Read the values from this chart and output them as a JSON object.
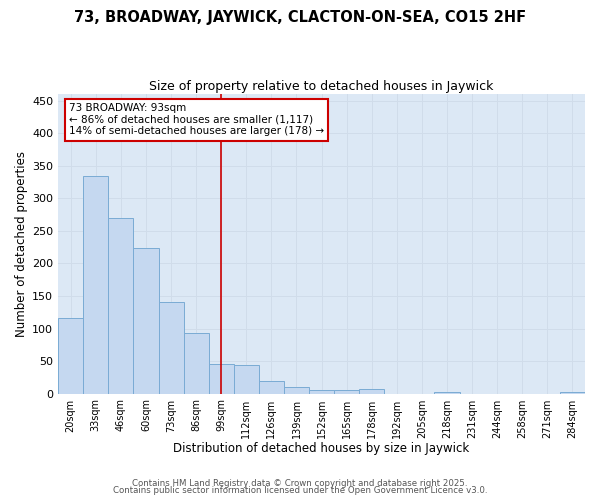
{
  "title1": "73, BROADWAY, JAYWICK, CLACTON-ON-SEA, CO15 2HF",
  "title2": "Size of property relative to detached houses in Jaywick",
  "xlabel": "Distribution of detached houses by size in Jaywick",
  "ylabel": "Number of detached properties",
  "bar_labels": [
    "20sqm",
    "33sqm",
    "46sqm",
    "60sqm",
    "73sqm",
    "86sqm",
    "99sqm",
    "112sqm",
    "126sqm",
    "139sqm",
    "152sqm",
    "165sqm",
    "178sqm",
    "192sqm",
    "205sqm",
    "218sqm",
    "231sqm",
    "244sqm",
    "258sqm",
    "271sqm",
    "284sqm"
  ],
  "bar_values": [
    116,
    335,
    270,
    224,
    140,
    93,
    45,
    44,
    20,
    10,
    6,
    5,
    7,
    0,
    0,
    2,
    0,
    0,
    0,
    0,
    3
  ],
  "bar_color": "#c5d8f0",
  "bar_edge_color": "#7aabd4",
  "vline_x": 6.0,
  "vline_color": "#cc0000",
  "annotation_text": "73 BROADWAY: 93sqm\n← 86% of detached houses are smaller (1,117)\n14% of semi-detached houses are larger (178) →",
  "grid_color": "#d0dcea",
  "bg_color": "#dce8f5",
  "fig_bg_color": "#ffffff",
  "ylim": [
    0,
    460
  ],
  "yticks": [
    0,
    50,
    100,
    150,
    200,
    250,
    300,
    350,
    400,
    450
  ],
  "footnote1": "Contains HM Land Registry data © Crown copyright and database right 2025.",
  "footnote2": "Contains public sector information licensed under the Open Government Licence v3.0."
}
